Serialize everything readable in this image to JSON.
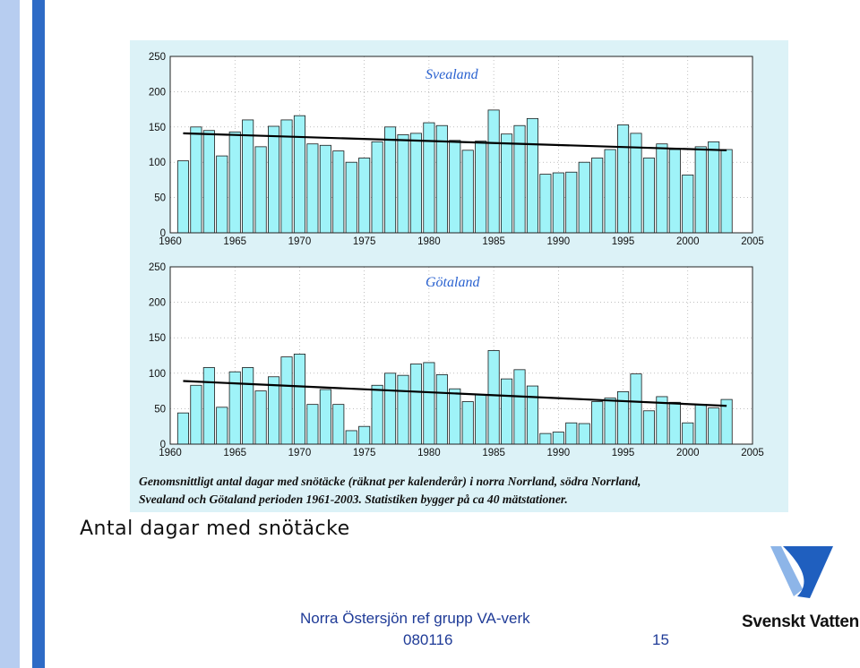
{
  "slide": {
    "title": "Antal dagar med snötäcke",
    "footer": "Norra Östersjön ref grupp VA-verk",
    "date": "080116",
    "page_number": "15",
    "logo_text": "Svenskt Vatten"
  },
  "caption": {
    "line1": "Genomsnittligt antal dagar med snötäcke (räknat per kalenderår) i norra Norrland, södra Norrland,",
    "line2": "Svealand och Götaland perioden 1961-2003. Statistiken bygger på ca 40 mätstationer."
  },
  "colors": {
    "bar_fill": "#9ff3f8",
    "bar_stroke": "#1a1a1a",
    "panel_bg": "#dcf2f7",
    "region_label": "#2a62d0",
    "footer": "#1f3b97",
    "stripe_light": "#b7cdf0",
    "stripe_dark": "#2e6bc6"
  },
  "chart_data": [
    {
      "type": "bar",
      "title": "Svealand",
      "x": [
        1961,
        1962,
        1963,
        1964,
        1965,
        1966,
        1967,
        1968,
        1969,
        1970,
        1971,
        1972,
        1973,
        1974,
        1975,
        1976,
        1977,
        1978,
        1979,
        1980,
        1981,
        1982,
        1983,
        1984,
        1985,
        1986,
        1987,
        1988,
        1989,
        1990,
        1991,
        1992,
        1993,
        1994,
        1995,
        1996,
        1997,
        1998,
        1999,
        2000,
        2001,
        2002,
        2003
      ],
      "values": [
        102,
        150,
        145,
        109,
        143,
        160,
        122,
        151,
        160,
        166,
        126,
        124,
        116,
        100,
        106,
        129,
        150,
        139,
        141,
        156,
        152,
        131,
        117,
        130,
        174,
        140,
        152,
        162,
        83,
        85,
        86,
        100,
        106,
        118,
        153,
        141,
        106,
        126,
        118,
        82,
        122,
        129,
        118
      ],
      "trend": {
        "start": [
          1961,
          141
        ],
        "end": [
          2003,
          117
        ]
      },
      "xlim": [
        1960,
        2005
      ],
      "ylim": [
        0,
        250
      ],
      "xticks": [
        1960,
        1965,
        1970,
        1975,
        1980,
        1985,
        1990,
        1995,
        2000,
        2005
      ],
      "yticks": [
        0,
        50,
        100,
        150,
        200,
        250
      ],
      "grid": true
    },
    {
      "type": "bar",
      "title": "Götaland",
      "x": [
        1961,
        1962,
        1963,
        1964,
        1965,
        1966,
        1967,
        1968,
        1969,
        1970,
        1971,
        1972,
        1973,
        1974,
        1975,
        1976,
        1977,
        1978,
        1979,
        1980,
        1981,
        1982,
        1983,
        1984,
        1985,
        1986,
        1987,
        1988,
        1989,
        1990,
        1991,
        1992,
        1993,
        1994,
        1995,
        1996,
        1997,
        1998,
        1999,
        2000,
        2001,
        2002,
        2003
      ],
      "values": [
        44,
        83,
        108,
        52,
        102,
        108,
        75,
        95,
        123,
        127,
        56,
        77,
        56,
        19,
        25,
        83,
        100,
        97,
        113,
        115,
        98,
        78,
        60,
        70,
        132,
        92,
        105,
        82,
        15,
        17,
        30,
        29,
        60,
        65,
        74,
        99,
        47,
        67,
        59,
        30,
        56,
        51,
        63
      ],
      "trend": {
        "start": [
          1961,
          89
        ],
        "end": [
          2003,
          54
        ]
      },
      "xlim": [
        1960,
        2005
      ],
      "ylim": [
        0,
        250
      ],
      "xticks": [
        1960,
        1965,
        1970,
        1975,
        1980,
        1985,
        1990,
        1995,
        2000,
        2005
      ],
      "yticks": [
        0,
        50,
        100,
        150,
        200,
        250
      ],
      "grid": true
    }
  ]
}
